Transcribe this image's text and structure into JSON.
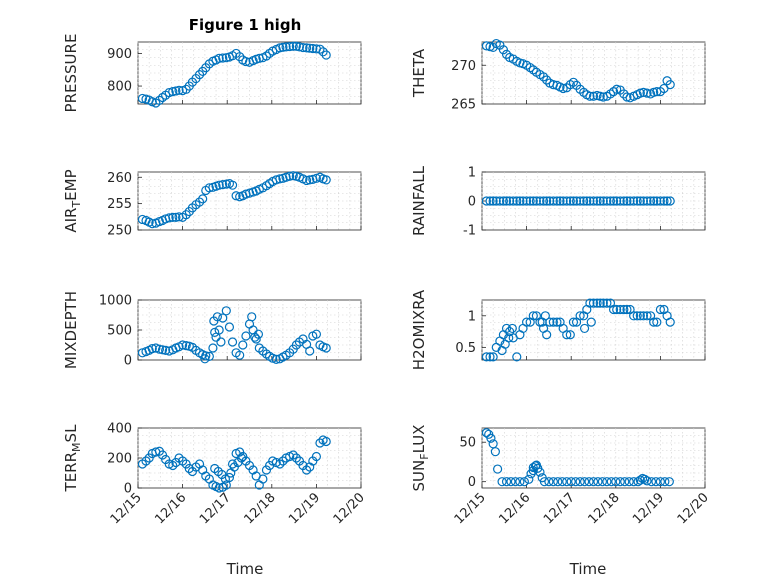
{
  "figure": {
    "title": "Figure 1 high",
    "marker_color": "#0072BD",
    "x_tick_labels": [
      "12/15",
      "12/16",
      "12/17",
      "12/18",
      "12/19",
      "12/20"
    ],
    "x_axis_label": "Time"
  },
  "chart_data": [
    {
      "type": "scatter",
      "name": "pressure",
      "ylabel": "PRESSURE",
      "ylim": [
        745,
        935
      ],
      "yticks": [
        800,
        900
      ],
      "xlim": [
        0,
        5
      ],
      "grid": true,
      "x": [
        0.1,
        0.18,
        0.25,
        0.32,
        0.4,
        0.48,
        0.55,
        0.62,
        0.7,
        0.78,
        0.85,
        0.92,
        1.0,
        1.08,
        1.15,
        1.22,
        1.3,
        1.38,
        1.45,
        1.52,
        1.6,
        1.68,
        1.75,
        1.82,
        1.9,
        1.98,
        2.05,
        2.12,
        2.2,
        2.28,
        2.35,
        2.42,
        2.5,
        2.58,
        2.65,
        2.72,
        2.8,
        2.88,
        2.95,
        3.02,
        3.1,
        3.18,
        3.25,
        3.32,
        3.4,
        3.48,
        3.55,
        3.62,
        3.7,
        3.78,
        3.85,
        3.92,
        4.0,
        4.08,
        4.15,
        4.22
      ],
      "y": [
        762,
        760,
        757,
        752,
        748,
        756,
        765,
        772,
        780,
        783,
        785,
        787,
        786,
        790,
        800,
        812,
        823,
        835,
        845,
        856,
        868,
        876,
        880,
        885,
        886,
        887,
        889,
        893,
        900,
        890,
        880,
        875,
        873,
        878,
        882,
        885,
        887,
        892,
        900,
        907,
        912,
        917,
        919,
        920,
        921,
        922,
        922,
        920,
        918,
        917,
        916,
        915,
        914,
        913,
        905,
        895
      ]
    },
    {
      "type": "scatter",
      "name": "theta",
      "ylabel": "THETA",
      "ylim": [
        265,
        273
      ],
      "yticks": [
        265,
        270
      ],
      "xlim": [
        0,
        5
      ],
      "grid": true,
      "x": [
        0.1,
        0.18,
        0.25,
        0.32,
        0.4,
        0.48,
        0.55,
        0.62,
        0.7,
        0.78,
        0.85,
        0.92,
        1.0,
        1.08,
        1.15,
        1.22,
        1.3,
        1.38,
        1.45,
        1.52,
        1.6,
        1.68,
        1.75,
        1.82,
        1.9,
        1.98,
        2.05,
        2.12,
        2.2,
        2.28,
        2.35,
        2.42,
        2.5,
        2.58,
        2.65,
        2.72,
        2.8,
        2.88,
        2.95,
        3.02,
        3.1,
        3.18,
        3.25,
        3.32,
        3.4,
        3.48,
        3.55,
        3.62,
        3.7,
        3.78,
        3.85,
        3.92,
        4.0,
        4.08,
        4.15,
        4.22
      ],
      "y": [
        272.5,
        272.4,
        272.3,
        272.8,
        272.6,
        272.0,
        271.4,
        271.0,
        270.8,
        270.5,
        270.3,
        270.2,
        270.0,
        269.7,
        269.4,
        269.1,
        268.8,
        268.5,
        268.1,
        267.7,
        267.5,
        267.4,
        267.2,
        267.0,
        267.1,
        267.5,
        267.8,
        267.4,
        266.9,
        266.5,
        266.2,
        266.0,
        266.0,
        266.1,
        266.0,
        265.9,
        266.0,
        266.3,
        266.6,
        266.9,
        266.8,
        266.3,
        265.9,
        265.8,
        266.0,
        266.2,
        266.4,
        266.5,
        266.4,
        266.3,
        266.5,
        266.6,
        266.6,
        267.0,
        268.0,
        267.5
      ]
    },
    {
      "type": "scatter",
      "name": "air_temp",
      "ylabel_main": "AIR",
      "ylabel_sub": "T",
      "ylabel_rest": "EMP",
      "ylim": [
        250,
        261
      ],
      "yticks": [
        250,
        255,
        260
      ],
      "xlim": [
        0,
        5
      ],
      "grid": true,
      "x": [
        0.1,
        0.18,
        0.25,
        0.32,
        0.4,
        0.48,
        0.55,
        0.62,
        0.7,
        0.78,
        0.85,
        0.92,
        1.0,
        1.08,
        1.15,
        1.22,
        1.3,
        1.38,
        1.45,
        1.52,
        1.6,
        1.68,
        1.75,
        1.82,
        1.9,
        1.98,
        2.05,
        2.12,
        2.2,
        2.28,
        2.35,
        2.42,
        2.5,
        2.58,
        2.65,
        2.72,
        2.8,
        2.88,
        2.95,
        3.02,
        3.1,
        3.18,
        3.25,
        3.32,
        3.4,
        3.48,
        3.55,
        3.62,
        3.7,
        3.78,
        3.85,
        3.92,
        4.0,
        4.08,
        4.15,
        4.22
      ],
      "y": [
        252.0,
        251.8,
        251.5,
        251.2,
        251.3,
        251.6,
        251.8,
        252.1,
        252.3,
        252.4,
        252.4,
        252.5,
        252.4,
        252.9,
        253.5,
        254.2,
        254.8,
        255.3,
        255.9,
        257.5,
        258.0,
        258.1,
        258.3,
        258.5,
        258.6,
        258.7,
        258.8,
        258.5,
        256.5,
        256.3,
        256.5,
        256.8,
        257.0,
        257.2,
        257.4,
        257.7,
        258.0,
        258.4,
        258.8,
        259.2,
        259.5,
        259.7,
        259.8,
        260.0,
        260.2,
        260.3,
        260.2,
        260.0,
        259.7,
        259.4,
        259.5,
        259.6,
        259.8,
        260.0,
        259.7,
        259.5
      ]
    },
    {
      "type": "scatter",
      "name": "rainfall",
      "ylabel": "RAINFALL",
      "ylim": [
        -1,
        1
      ],
      "yticks": [
        -1,
        0,
        1
      ],
      "xlim": [
        0,
        5
      ],
      "grid": true,
      "x": [
        0.1,
        0.18,
        0.25,
        0.32,
        0.4,
        0.48,
        0.55,
        0.62,
        0.7,
        0.78,
        0.85,
        0.92,
        1.0,
        1.08,
        1.15,
        1.22,
        1.3,
        1.38,
        1.45,
        1.52,
        1.6,
        1.68,
        1.75,
        1.82,
        1.9,
        1.98,
        2.05,
        2.12,
        2.2,
        2.28,
        2.35,
        2.42,
        2.5,
        2.58,
        2.65,
        2.72,
        2.8,
        2.88,
        2.95,
        3.02,
        3.1,
        3.18,
        3.25,
        3.32,
        3.4,
        3.48,
        3.55,
        3.62,
        3.7,
        3.78,
        3.85,
        3.92,
        4.0,
        4.08,
        4.15,
        4.22
      ],
      "y": [
        0,
        0,
        0,
        0,
        0,
        0,
        0,
        0,
        0,
        0,
        0,
        0,
        0,
        0,
        0,
        0,
        0,
        0,
        0,
        0,
        0,
        0,
        0,
        0,
        0,
        0,
        0,
        0,
        0,
        0,
        0,
        0,
        0,
        0,
        0,
        0,
        0,
        0,
        0,
        0,
        0,
        0,
        0,
        0,
        0,
        0,
        0,
        0,
        0,
        0,
        0,
        0,
        0,
        0,
        0,
        0
      ]
    },
    {
      "type": "scatter",
      "name": "mixdepth",
      "ylabel": "MIXDEPTH",
      "ylim": [
        0,
        1000
      ],
      "yticks": [
        0,
        500,
        1000
      ],
      "xlim": [
        0,
        5
      ],
      "grid": true,
      "x": [
        0.1,
        0.18,
        0.25,
        0.32,
        0.4,
        0.48,
        0.55,
        0.62,
        0.7,
        0.78,
        0.85,
        0.92,
        1.0,
        1.08,
        1.15,
        1.22,
        1.3,
        1.38,
        1.45,
        1.52,
        1.6,
        1.68,
        1.75,
        1.82,
        1.9,
        1.98,
        2.05,
        2.12,
        2.2,
        2.28,
        2.35,
        2.42,
        2.5,
        2.58,
        2.65,
        2.72,
        2.8,
        2.88,
        2.95,
        3.02,
        3.1,
        3.18,
        3.25,
        3.32,
        3.4,
        3.48,
        3.55,
        3.62,
        3.7,
        3.78,
        3.85,
        3.92,
        4.0,
        4.08,
        4.15,
        4.22,
        1.7,
        1.78,
        1.86,
        1.72,
        2.55,
        2.62,
        2.7,
        1.5
      ],
      "y": [
        120,
        140,
        160,
        190,
        200,
        180,
        170,
        160,
        150,
        170,
        200,
        220,
        250,
        240,
        230,
        210,
        160,
        120,
        90,
        70,
        60,
        200,
        380,
        500,
        700,
        820,
        550,
        300,
        120,
        80,
        250,
        400,
        600,
        500,
        350,
        200,
        150,
        100,
        60,
        30,
        10,
        20,
        50,
        80,
        120,
        180,
        250,
        300,
        350,
        260,
        150,
        400,
        430,
        250,
        220,
        200,
        650,
        720,
        300,
        460,
        720,
        380,
        430,
        20
      ]
    },
    {
      "type": "scatter",
      "name": "h2omixra",
      "ylabel": "H2OMIXRA",
      "ylim": [
        0.3,
        1.25
      ],
      "yticks": [
        0.5,
        1
      ],
      "xlim": [
        0,
        5
      ],
      "grid": true,
      "x": [
        0.1,
        0.18,
        0.25,
        0.32,
        0.4,
        0.48,
        0.55,
        0.62,
        0.7,
        0.78,
        0.85,
        0.92,
        1.0,
        1.08,
        1.15,
        1.22,
        1.3,
        1.38,
        1.45,
        1.52,
        1.6,
        1.68,
        1.75,
        1.82,
        1.9,
        1.98,
        2.05,
        2.12,
        2.2,
        2.28,
        2.35,
        2.42,
        2.5,
        2.58,
        2.65,
        2.72,
        2.8,
        2.88,
        2.95,
        3.02,
        3.1,
        3.18,
        3.25,
        3.32,
        3.4,
        3.48,
        3.55,
        3.62,
        3.7,
        3.78,
        3.85,
        3.92,
        4.0,
        4.08,
        4.15,
        4.22,
        0.45,
        0.52,
        0.6,
        0.68,
        1.35,
        1.42,
        2.3,
        2.45
      ],
      "y": [
        0.35,
        0.35,
        0.35,
        0.5,
        0.6,
        0.7,
        0.8,
        0.75,
        0.65,
        0.35,
        0.7,
        0.8,
        0.9,
        0.9,
        1.0,
        1.0,
        0.9,
        0.8,
        0.7,
        0.9,
        0.9,
        0.9,
        0.9,
        0.8,
        0.7,
        0.7,
        0.9,
        0.9,
        1.0,
        1.0,
        1.1,
        1.2,
        1.2,
        1.2,
        1.2,
        1.2,
        1.2,
        1.2,
        1.1,
        1.1,
        1.1,
        1.1,
        1.1,
        1.1,
        1.0,
        1.0,
        1.0,
        1.0,
        1.0,
        1.0,
        0.9,
        0.9,
        1.1,
        1.1,
        1.0,
        0.9,
        0.45,
        0.55,
        0.65,
        0.8,
        0.9,
        1.0,
        0.8,
        0.9
      ]
    },
    {
      "type": "scatter",
      "name": "terr_msl",
      "ylabel_main": "TERR",
      "ylabel_sub": "M",
      "ylabel_rest": "SL",
      "ylim": [
        0,
        400
      ],
      "yticks": [
        0,
        200,
        400
      ],
      "xlim": [
        0,
        5
      ],
      "grid": true,
      "x": [
        0.1,
        0.18,
        0.25,
        0.32,
        0.4,
        0.48,
        0.55,
        0.62,
        0.7,
        0.78,
        0.85,
        0.92,
        1.0,
        1.08,
        1.15,
        1.22,
        1.3,
        1.38,
        1.45,
        1.52,
        1.6,
        1.68,
        1.75,
        1.82,
        1.9,
        1.98,
        2.05,
        2.12,
        2.2,
        2.28,
        2.35,
        2.42,
        2.5,
        2.58,
        2.65,
        2.72,
        2.8,
        2.88,
        2.95,
        3.02,
        3.1,
        3.18,
        3.25,
        3.32,
        3.4,
        3.48,
        3.55,
        3.62,
        3.7,
        3.78,
        3.85,
        3.92,
        4.0,
        4.08,
        4.15,
        4.22,
        1.72,
        1.8,
        1.88,
        1.96,
        2.08,
        2.16,
        2.24,
        2.32
      ],
      "y": [
        160,
        180,
        200,
        230,
        240,
        245,
        220,
        190,
        160,
        150,
        170,
        200,
        180,
        160,
        130,
        110,
        140,
        160,
        120,
        80,
        60,
        20,
        10,
        0,
        5,
        20,
        70,
        160,
        230,
        240,
        210,
        180,
        150,
        120,
        80,
        20,
        60,
        120,
        150,
        180,
        170,
        160,
        180,
        200,
        210,
        220,
        200,
        180,
        150,
        120,
        140,
        180,
        210,
        300,
        320,
        310,
        130,
        110,
        90,
        60,
        100,
        140,
        170,
        200
      ]
    },
    {
      "type": "scatter",
      "name": "sun_flux",
      "ylabel_main": "SUN",
      "ylabel_sub": "F",
      "ylabel_rest": "LUX",
      "ylim": [
        -8,
        68
      ],
      "yticks": [
        0,
        50
      ],
      "xlim": [
        0,
        5
      ],
      "grid": true,
      "x": [
        0.1,
        0.15,
        0.2,
        0.25,
        0.3,
        0.35,
        0.45,
        0.55,
        0.65,
        0.75,
        0.85,
        0.95,
        1.05,
        1.1,
        1.15,
        1.2,
        1.25,
        1.3,
        1.35,
        1.4,
        1.5,
        1.6,
        1.7,
        1.8,
        1.9,
        2.0,
        2.1,
        2.2,
        2.3,
        2.4,
        2.5,
        2.6,
        2.7,
        2.8,
        2.9,
        3.0,
        3.1,
        3.2,
        3.3,
        3.4,
        3.5,
        3.55,
        3.6,
        3.65,
        3.7,
        3.8,
        3.9,
        4.0,
        4.1,
        4.2,
        1.15,
        1.22
      ],
      "y": [
        62,
        60,
        55,
        48,
        38,
        16,
        0,
        0,
        0,
        0,
        0,
        0,
        3,
        10,
        18,
        20,
        17,
        12,
        5,
        0,
        0,
        0,
        0,
        0,
        0,
        0,
        0,
        0,
        0,
        0,
        0,
        0,
        0,
        0,
        0,
        0,
        0,
        0,
        0,
        0,
        0,
        2,
        4,
        3,
        1,
        0,
        0,
        0,
        0,
        0,
        14,
        21
      ]
    }
  ]
}
